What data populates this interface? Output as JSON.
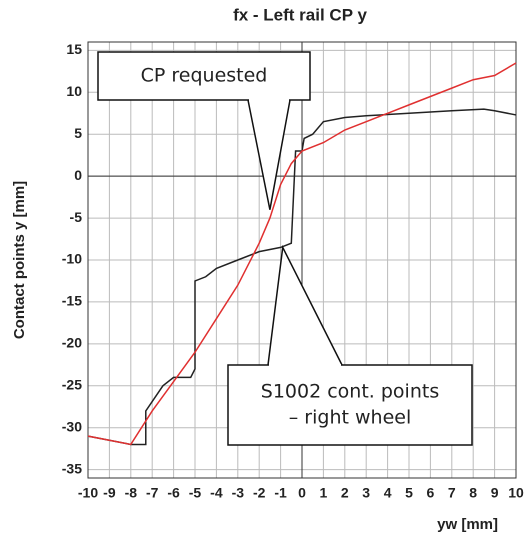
{
  "chart_data": {
    "type": "line",
    "title": "fx - Left rail CP y",
    "x_label": "yw [mm]",
    "y_label": "Contact points y [mm]",
    "xlim": [
      -10,
      10
    ],
    "ylim": [
      -36,
      16
    ],
    "xticks": [
      -10,
      -9,
      -8,
      -7,
      -6,
      -5,
      -4,
      -3,
      -2,
      -1,
      0,
      1,
      2,
      3,
      4,
      5,
      6,
      7,
      8,
      9,
      10
    ],
    "yticks": [
      -35,
      -30,
      -25,
      -20,
      -15,
      -10,
      -5,
      0,
      5,
      10,
      15
    ],
    "grid": true,
    "annotations": [
      {
        "lines": [
          "CP requested"
        ]
      },
      {
        "lines": [
          "S1002 cont. points",
          "– right wheel"
        ]
      }
    ],
    "series": [
      {
        "color": "#222222",
        "x": [
          -10,
          -8,
          -7.3,
          -7.3,
          -6.5,
          -6,
          -5.2,
          -5,
          -5,
          -4.5,
          -4,
          -3,
          -2,
          -1,
          -0.5,
          -0.3,
          0,
          0.1,
          0.5,
          1,
          2,
          3,
          5,
          7,
          8.5,
          9,
          10
        ],
        "values": [
          -31,
          -32,
          -32,
          -28,
          -25,
          -24,
          -24,
          -23,
          -12.5,
          -12,
          -11,
          -10,
          -9,
          -8.5,
          -8,
          3,
          3,
          4.5,
          5,
          6.5,
          7,
          7.2,
          7.5,
          7.8,
          8,
          7.8,
          7.3
        ]
      },
      {
        "color": "#e03030",
        "x": [
          -10,
          -8,
          -7,
          -5,
          -4,
          -3,
          -2,
          -1.5,
          -1,
          -0.5,
          0,
          1,
          2,
          3,
          4,
          5,
          6,
          7,
          8,
          9,
          10
        ],
        "values": [
          -31,
          -32,
          -28,
          -21,
          -17,
          -13,
          -8,
          -5,
          -1,
          1.5,
          3,
          4,
          5.5,
          6.5,
          7.5,
          8.5,
          9.5,
          10.5,
          11.5,
          12,
          13.5
        ]
      }
    ]
  }
}
